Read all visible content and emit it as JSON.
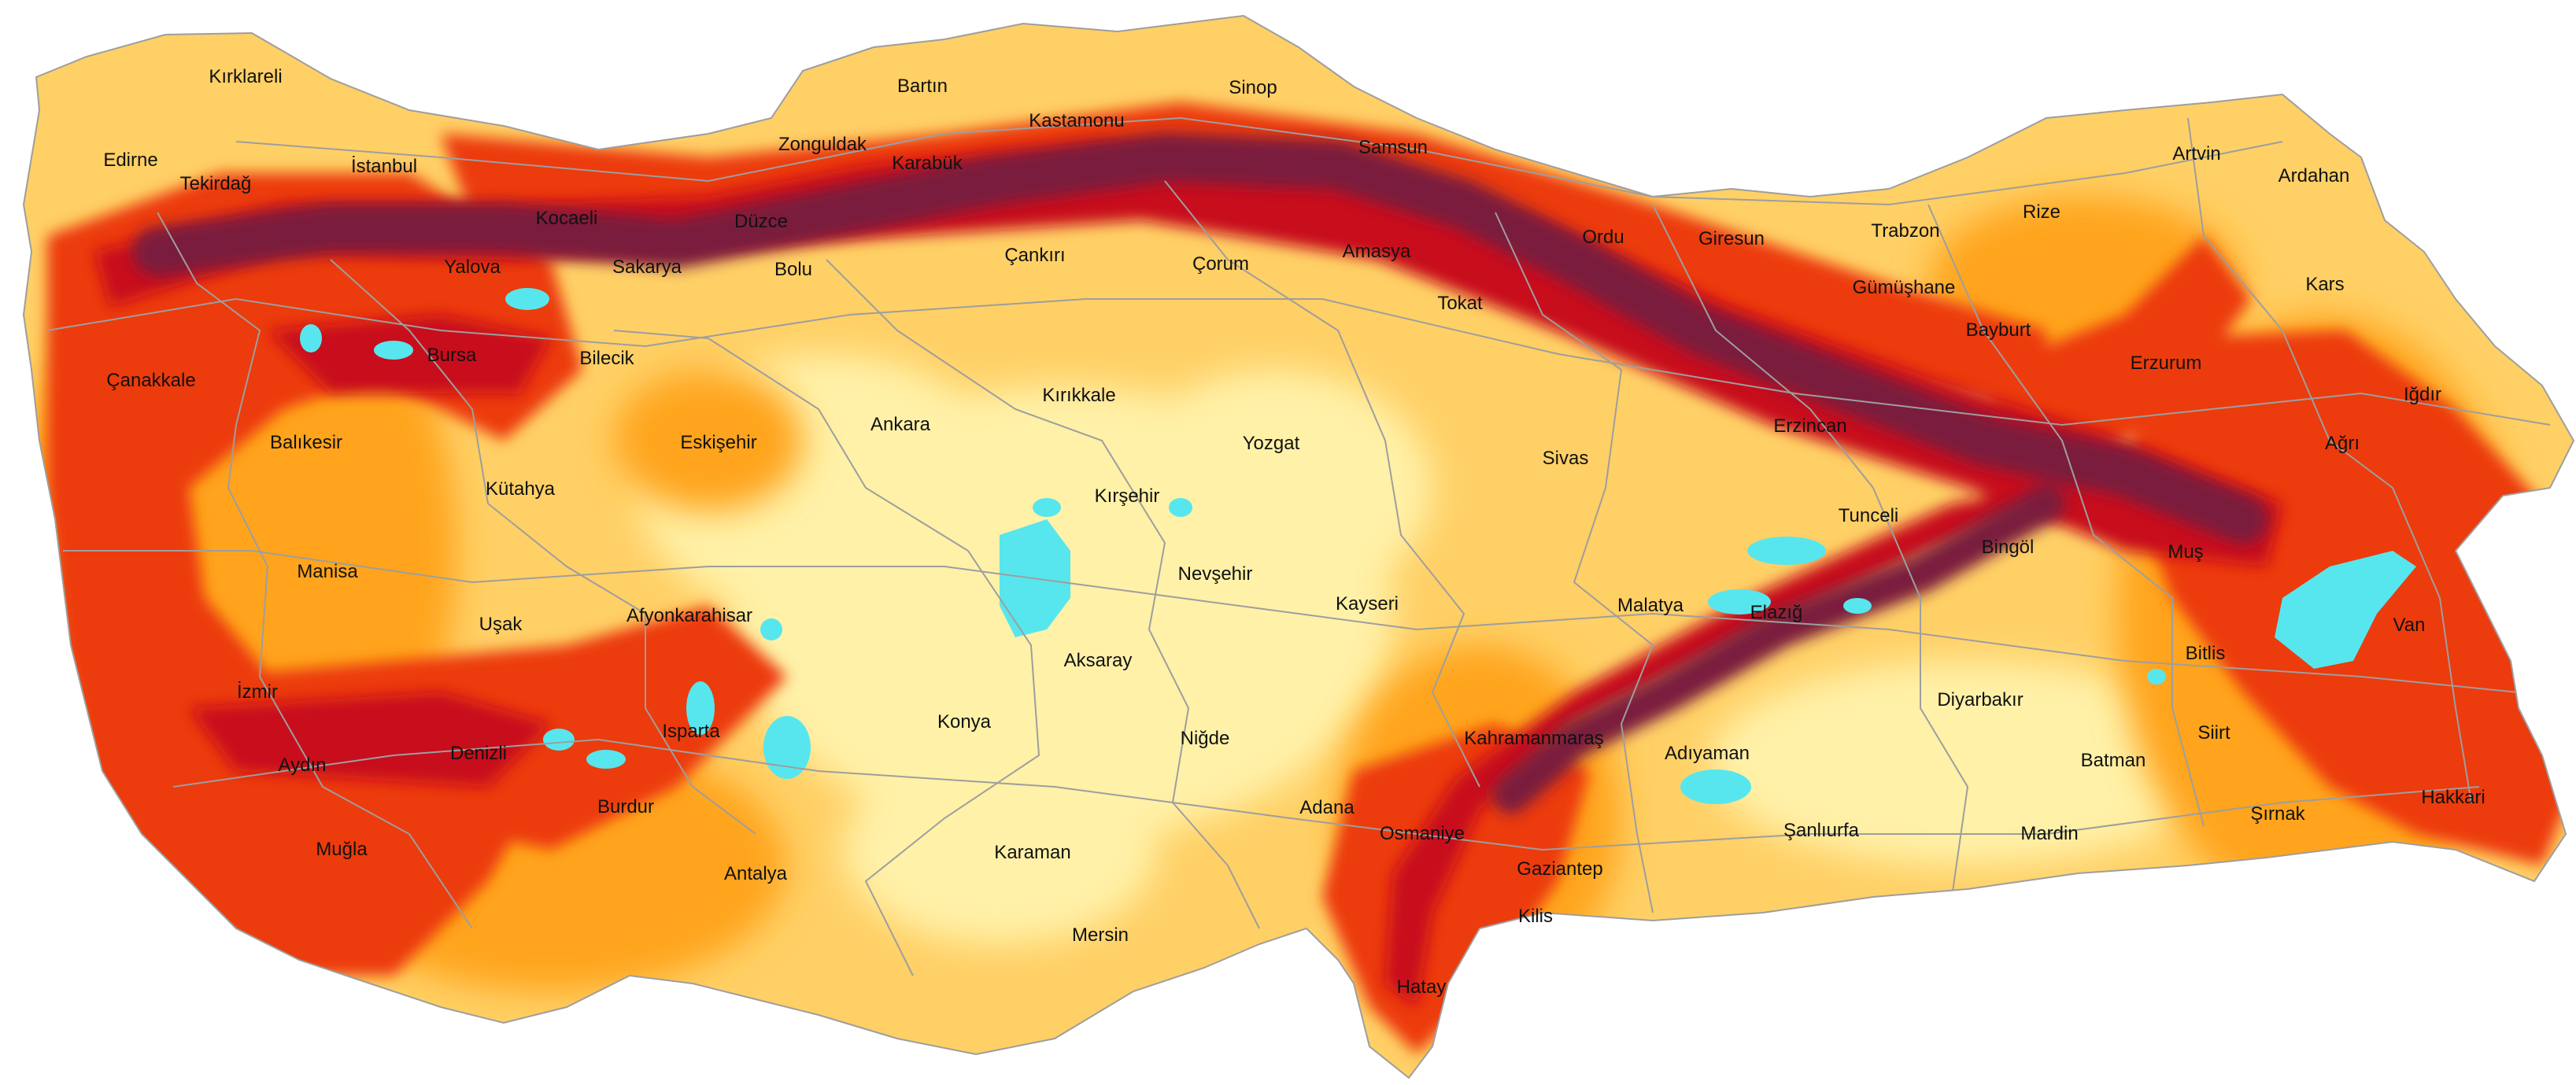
{
  "map": {
    "colors": {
      "background": "#ffffff",
      "land_base": "#ffd066",
      "low_hazard": "#fff1a8",
      "medium_hazard": "#ffa41e",
      "high_hazard": "#ec3a0c",
      "very_high_hazard": "#c8101a",
      "extreme_hazard": "#7a1e3e",
      "lakes": "#57e6ee",
      "borders": "#9e9e9e"
    },
    "provinces": [
      {
        "name": "Kırklareli"
      },
      {
        "name": "Edirne"
      },
      {
        "name": "Tekirdağ"
      },
      {
        "name": "İstanbul"
      },
      {
        "name": "Kocaeli"
      },
      {
        "name": "Yalova"
      },
      {
        "name": "Sakarya"
      },
      {
        "name": "Düzce"
      },
      {
        "name": "Bolu"
      },
      {
        "name": "Zonguldak"
      },
      {
        "name": "Bartın"
      },
      {
        "name": "Karabük"
      },
      {
        "name": "Kastamonu"
      },
      {
        "name": "Sinop"
      },
      {
        "name": "Samsun"
      },
      {
        "name": "Çankırı"
      },
      {
        "name": "Çorum"
      },
      {
        "name": "Amasya"
      },
      {
        "name": "Tokat"
      },
      {
        "name": "Ordu"
      },
      {
        "name": "Giresun"
      },
      {
        "name": "Trabzon"
      },
      {
        "name": "Rize"
      },
      {
        "name": "Artvin"
      },
      {
        "name": "Ardahan"
      },
      {
        "name": "Gümüşhane"
      },
      {
        "name": "Bayburt"
      },
      {
        "name": "Kars"
      },
      {
        "name": "Erzurum"
      },
      {
        "name": "Iğdır"
      },
      {
        "name": "Ağrı"
      },
      {
        "name": "Erzincan"
      },
      {
        "name": "Çanakkale"
      },
      {
        "name": "Bursa"
      },
      {
        "name": "Bilecik"
      },
      {
        "name": "Balıkesir"
      },
      {
        "name": "Eskişehir"
      },
      {
        "name": "Ankara"
      },
      {
        "name": "Kırıkkale"
      },
      {
        "name": "Yozgat"
      },
      {
        "name": "Sivas"
      },
      {
        "name": "Kütahya"
      },
      {
        "name": "Kırşehir"
      },
      {
        "name": "Tunceli"
      },
      {
        "name": "Bingöl"
      },
      {
        "name": "Muş"
      },
      {
        "name": "Manisa"
      },
      {
        "name": "Nevşehir"
      },
      {
        "name": "Uşak"
      },
      {
        "name": "Afyonkarahisar"
      },
      {
        "name": "Kayseri"
      },
      {
        "name": "Malatya"
      },
      {
        "name": "Elazığ"
      },
      {
        "name": "Van"
      },
      {
        "name": "Bitlis"
      },
      {
        "name": "İzmir"
      },
      {
        "name": "Aksaray"
      },
      {
        "name": "Diyarbakır"
      },
      {
        "name": "Konya"
      },
      {
        "name": "Isparta"
      },
      {
        "name": "Niğde"
      },
      {
        "name": "Kahramanmaraş"
      },
      {
        "name": "Siirt"
      },
      {
        "name": "Aydın"
      },
      {
        "name": "Denizli"
      },
      {
        "name": "Adıyaman"
      },
      {
        "name": "Batman"
      },
      {
        "name": "Burdur"
      },
      {
        "name": "Adana"
      },
      {
        "name": "Hakkari"
      },
      {
        "name": "Şırnak"
      },
      {
        "name": "Osmaniye"
      },
      {
        "name": "Şanlıurfa"
      },
      {
        "name": "Mardin"
      },
      {
        "name": "Muğla"
      },
      {
        "name": "Karaman"
      },
      {
        "name": "Gaziantep"
      },
      {
        "name": "Antalya"
      },
      {
        "name": "Kilis"
      },
      {
        "name": "Mersin"
      },
      {
        "name": "Hatay"
      }
    ]
  }
}
